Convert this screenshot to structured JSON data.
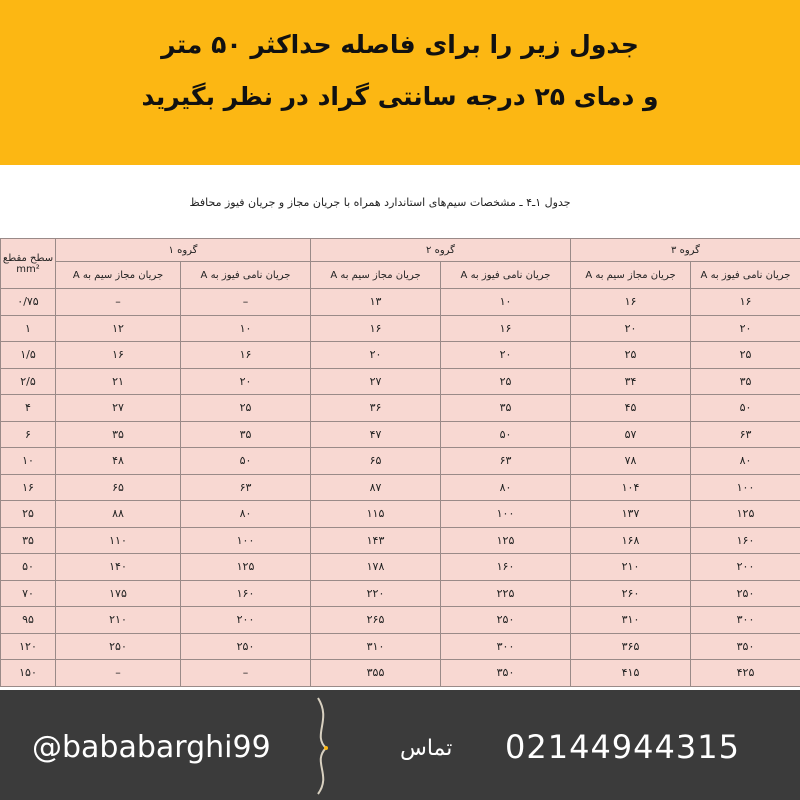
{
  "header": {
    "line1": "جدول زیر را برای فاصله حداکثر ۵۰ متر",
    "line2": "و دمای ۲۵ درجه سانتی گراد در نظر بگیرید"
  },
  "table": {
    "caption": "جدول ۱ـ۴ ـ مشخصات سیم‌های استاندارد همراه با جریان مجاز و جریان فیوز محافظ",
    "section_header": "سطح مقطع mm²",
    "group_headers": [
      "گروه ۱",
      "گروه ۲",
      "گروه ۳"
    ],
    "sub_headers": [
      "جریان مجاز سیم به A",
      "جریان نامی فیوز به A",
      "جریان مجاز سیم به A",
      "جریان نامی فیوز به A",
      "جریان مجاز سیم به A",
      "جریان نامی فیوز به A"
    ],
    "rows": [
      [
        "۰/۷۵",
        "–",
        "–",
        "۱۳",
        "۱۰",
        "۱۶",
        "۱۶"
      ],
      [
        "۱",
        "۱۲",
        "۱۰",
        "۱۶",
        "۱۶",
        "۲۰",
        "۲۰"
      ],
      [
        "۱/۵",
        "۱۶",
        "۱۶",
        "۲۰",
        "۲۰",
        "۲۵",
        "۲۵"
      ],
      [
        "۲/۵",
        "۲۱",
        "۲۰",
        "۲۷",
        "۲۵",
        "۳۴",
        "۳۵"
      ],
      [
        "۴",
        "۲۷",
        "۲۵",
        "۳۶",
        "۳۵",
        "۴۵",
        "۵۰"
      ],
      [
        "۶",
        "۳۵",
        "۳۵",
        "۴۷",
        "۵۰",
        "۵۷",
        "۶۳"
      ],
      [
        "۱۰",
        "۴۸",
        "۵۰",
        "۶۵",
        "۶۳",
        "۷۸",
        "۸۰"
      ],
      [
        "۱۶",
        "۶۵",
        "۶۳",
        "۸۷",
        "۸۰",
        "۱۰۴",
        "۱۰۰"
      ],
      [
        "۲۵",
        "۸۸",
        "۸۰",
        "۱۱۵",
        "۱۰۰",
        "۱۳۷",
        "۱۲۵"
      ],
      [
        "۳۵",
        "۱۱۰",
        "۱۰۰",
        "۱۴۳",
        "۱۲۵",
        "۱۶۸",
        "۱۶۰"
      ],
      [
        "۵۰",
        "۱۴۰",
        "۱۲۵",
        "۱۷۸",
        "۱۶۰",
        "۲۱۰",
        "۲۰۰"
      ],
      [
        "۷۰",
        "۱۷۵",
        "۱۶۰",
        "۲۲۰",
        "۲۲۵",
        "۲۶۰",
        "۲۵۰"
      ],
      [
        "۹۵",
        "۲۱۰",
        "۲۰۰",
        "۲۶۵",
        "۲۵۰",
        "۳۱۰",
        "۳۰۰"
      ],
      [
        "۱۲۰",
        "۲۵۰",
        "۲۵۰",
        "۳۱۰",
        "۳۰۰",
        "۳۶۵",
        "۳۵۰"
      ],
      [
        "۱۵۰",
        "–",
        "–",
        "۳۵۵",
        "۳۵۰",
        "۴۱۵",
        "۴۲۵"
      ]
    ]
  },
  "footer": {
    "handle": "@bababarghi99",
    "contact_label": "تماس",
    "phone": "02144944315"
  }
}
